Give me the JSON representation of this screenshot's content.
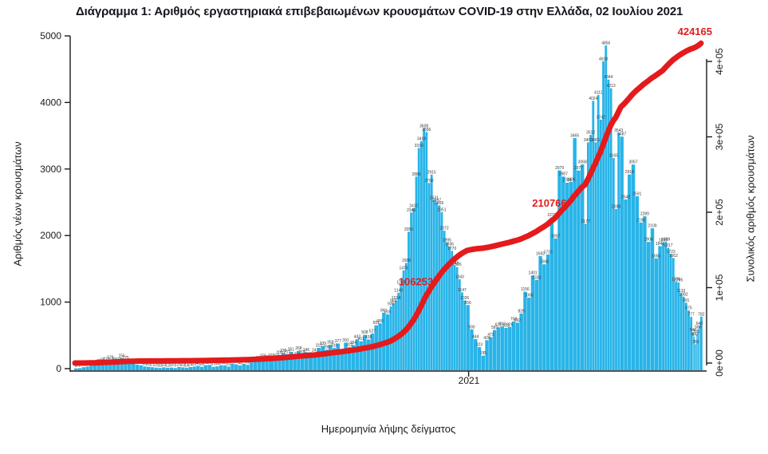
{
  "title": "Διάγραμμα 1: Αριθμός εργαστηριακά επιβεβαιωμένων κρουσμάτων COVID-19 στην Ελλάδα, 02 Ιουλίου 2021",
  "axes": {
    "left": {
      "title": "Αριθμός νέων κρουσμάτων",
      "ticks": [
        {
          "value": 0,
          "label": "0"
        },
        {
          "value": 1000,
          "label": "1000"
        },
        {
          "value": 2000,
          "label": "2000"
        },
        {
          "value": 3000,
          "label": "3000"
        },
        {
          "value": 4000,
          "label": "4000"
        },
        {
          "value": 5000,
          "label": "5000"
        }
      ]
    },
    "right": {
      "title": "Συνολικός αριθμός κρουσμάτων",
      "ticks": [
        {
          "value": 0,
          "label": "0e+00"
        },
        {
          "value": 100000,
          "label": "1e+05"
        },
        {
          "value": 200000,
          "label": "2e+05"
        },
        {
          "value": 300000,
          "label": "3e+05"
        },
        {
          "value": 400000,
          "label": "4e+05"
        }
      ]
    },
    "x": {
      "title": "Ημερομηνία λήψης δείγματος",
      "tick_label": "2021",
      "tick_date": "2021-01-01"
    }
  },
  "colors": {
    "bar": "#28b4e8",
    "line": "#e41a1c",
    "annotation": "#e41a1c",
    "bar_label": "#3a3a3a",
    "axis": "#1a1a1a"
  },
  "annotations": [
    {
      "text": "106253",
      "value": 106253
    },
    {
      "text": "210766",
      "value": 210766
    },
    {
      "text": "424165",
      "value": 424165,
      "final": true
    }
  ],
  "chart_data": {
    "type": "bar+line",
    "title": "Διάγραμμα 1: Αριθμός εργαστηριακά επιβεβαιωμένων κρουσμάτων COVID-19 στην Ελλάδα, 02 Ιουλίου 2021",
    "xlabel": "Ημερομηνία λήψης δείγματος",
    "ylabel_left": "Αριθμός νέων κρουσμάτων",
    "ylabel_right": "Συνολικός αριθμός κρουσμάτων",
    "ylim_left": [
      0,
      5000
    ],
    "ylim_right": [
      0,
      400000
    ],
    "x_tick_labels": [
      "2021"
    ],
    "grid": false,
    "legend": "none",
    "date_range": [
      "2020-02-26",
      "2021-07-02"
    ],
    "bar_series": {
      "name": "daily-new-cases",
      "points": [
        [
          "2020-02-26",
          3
        ],
        [
          "2020-02-29",
          7
        ],
        [
          "2020-03-03",
          21
        ],
        [
          "2020-03-06",
          31
        ],
        [
          "2020-03-09",
          46
        ],
        [
          "2020-03-12",
          57
        ],
        [
          "2020-03-15",
          79
        ],
        [
          "2020-03-18",
          95
        ],
        [
          "2020-03-21",
          110
        ],
        [
          "2020-03-24",
          129
        ],
        [
          "2020-03-27",
          99
        ],
        [
          "2020-03-30",
          102
        ],
        [
          "2020-04-02",
          156
        ],
        [
          "2020-04-05",
          125
        ],
        [
          "2020-04-08",
          86
        ],
        [
          "2020-04-11",
          77
        ],
        [
          "2020-04-14",
          60
        ],
        [
          "2020-04-17",
          52
        ],
        [
          "2020-04-20",
          33
        ],
        [
          "2020-04-23",
          28
        ],
        [
          "2020-04-26",
          21
        ],
        [
          "2020-04-29",
          15
        ],
        [
          "2020-05-02",
          10
        ],
        [
          "2020-05-05",
          19
        ],
        [
          "2020-05-08",
          12
        ],
        [
          "2020-05-11",
          16
        ],
        [
          "2020-05-14",
          9
        ],
        [
          "2020-05-17",
          25
        ],
        [
          "2020-05-20",
          19
        ],
        [
          "2020-05-23",
          14
        ],
        [
          "2020-05-26",
          24
        ],
        [
          "2020-05-29",
          31
        ],
        [
          "2020-06-01",
          43
        ],
        [
          "2020-06-04",
          28
        ],
        [
          "2020-06-07",
          52
        ],
        [
          "2020-06-10",
          56
        ],
        [
          "2020-06-13",
          27
        ],
        [
          "2020-06-16",
          34
        ],
        [
          "2020-06-19",
          50
        ],
        [
          "2020-06-22",
          48
        ],
        [
          "2020-06-25",
          31
        ],
        [
          "2020-06-28",
          78
        ],
        [
          "2020-07-01",
          64
        ],
        [
          "2020-07-04",
          48
        ],
        [
          "2020-07-07",
          73
        ],
        [
          "2020-07-10",
          58
        ],
        [
          "2020-07-13",
          94
        ],
        [
          "2020-07-16",
          110
        ],
        [
          "2020-07-19",
          128
        ],
        [
          "2020-07-22",
          156
        ],
        [
          "2020-07-25",
          135
        ],
        [
          "2020-07-28",
          161
        ],
        [
          "2020-08-01",
          153
        ],
        [
          "2020-08-04",
          203
        ],
        [
          "2020-08-07",
          235
        ],
        [
          "2020-08-10",
          217
        ],
        [
          "2020-08-13",
          251
        ],
        [
          "2020-08-16",
          177
        ],
        [
          "2020-08-19",
          268
        ],
        [
          "2020-08-22",
          209
        ],
        [
          "2020-08-25",
          246
        ],
        [
          "2020-08-28",
          178
        ],
        [
          "2020-09-01",
          241
        ],
        [
          "2020-09-04",
          312
        ],
        [
          "2020-09-07",
          339
        ],
        [
          "2020-09-10",
          286
        ],
        [
          "2020-09-13",
          358
        ],
        [
          "2020-09-16",
          310
        ],
        [
          "2020-09-19",
          377
        ],
        [
          "2020-09-22",
          218
        ],
        [
          "2020-09-25",
          391
        ],
        [
          "2020-09-28",
          322
        ],
        [
          "2020-10-01",
          354
        ],
        [
          "2020-10-04",
          442
        ],
        [
          "2020-10-07",
          411
        ],
        [
          "2020-10-10",
          508
        ],
        [
          "2020-10-13",
          438
        ],
        [
          "2020-10-16",
          527
        ],
        [
          "2020-10-19",
          651
        ],
        [
          "2020-10-22",
          680
        ],
        [
          "2020-10-25",
          841
        ],
        [
          "2020-10-28",
          815
        ],
        [
          "2020-10-31",
          935
        ],
        [
          "2020-11-02",
          982
        ],
        [
          "2020-11-04",
          1024
        ],
        [
          "2020-11-06",
          1140
        ],
        [
          "2020-11-08",
          1259
        ],
        [
          "2020-11-10",
          1476
        ],
        [
          "2020-11-12",
          1588
        ],
        [
          "2020-11-14",
          2056
        ],
        [
          "2020-11-16",
          2346
        ],
        [
          "2020-11-18",
          2412
        ],
        [
          "2020-11-20",
          2886
        ],
        [
          "2020-11-22",
          3316
        ],
        [
          "2020-11-24",
          3418
        ],
        [
          "2020-11-26",
          3608
        ],
        [
          "2020-11-28",
          3556
        ],
        [
          "2020-11-30",
          2790
        ],
        [
          "2020-12-02",
          2915
        ],
        [
          "2020-12-04",
          2531
        ],
        [
          "2020-12-06",
          2497
        ],
        [
          "2020-12-08",
          2455
        ],
        [
          "2020-12-10",
          2351
        ],
        [
          "2020-12-12",
          2072
        ],
        [
          "2020-12-14",
          1895
        ],
        [
          "2020-12-16",
          1836
        ],
        [
          "2020-12-18",
          1770
        ],
        [
          "2020-12-20",
          1548
        ],
        [
          "2020-12-22",
          1526
        ],
        [
          "2020-12-24",
          1343
        ],
        [
          "2020-12-26",
          1147
        ],
        [
          "2020-12-28",
          1026
        ],
        [
          "2020-12-30",
          956
        ],
        [
          "2021-01-02",
          590
        ],
        [
          "2021-01-05",
          444
        ],
        [
          "2021-01-08",
          323
        ],
        [
          "2021-01-11",
          195
        ],
        [
          "2021-01-14",
          428
        ],
        [
          "2021-01-17",
          473
        ],
        [
          "2021-01-20",
          581
        ],
        [
          "2021-01-23",
          622
        ],
        [
          "2021-01-26",
          633
        ],
        [
          "2021-01-29",
          612
        ],
        [
          "2021-02-01",
          626
        ],
        [
          "2021-02-04",
          708
        ],
        [
          "2021-02-07",
          692
        ],
        [
          "2021-02-10",
          829
        ],
        [
          "2021-02-13",
          1156
        ],
        [
          "2021-02-16",
          1066
        ],
        [
          "2021-02-19",
          1401
        ],
        [
          "2021-02-22",
          1333
        ],
        [
          "2021-02-25",
          1692
        ],
        [
          "2021-02-28",
          1568
        ],
        [
          "2021-03-03",
          1715
        ],
        [
          "2021-03-06",
          2272
        ],
        [
          "2021-03-09",
          1957
        ],
        [
          "2021-03-12",
          2979
        ],
        [
          "2021-03-15",
          2887
        ],
        [
          "2021-03-18",
          2794
        ],
        [
          "2021-03-21",
          2806
        ],
        [
          "2021-03-24",
          3465
        ],
        [
          "2021-03-27",
          2977
        ],
        [
          "2021-03-30",
          3068
        ],
        [
          "2021-04-02",
          2177
        ],
        [
          "2021-04-04",
          3400
        ],
        [
          "2021-04-06",
          3512
        ],
        [
          "2021-04-08",
          4024
        ],
        [
          "2021-04-10",
          3401
        ],
        [
          "2021-04-12",
          4111
        ],
        [
          "2021-04-14",
          3742
        ],
        [
          "2021-04-16",
          4618
        ],
        [
          "2021-04-18",
          4856
        ],
        [
          "2021-04-20",
          4344
        ],
        [
          "2021-04-22",
          4213
        ],
        [
          "2021-04-24",
          3165
        ],
        [
          "2021-04-26",
          2398
        ],
        [
          "2021-04-28",
          3543
        ],
        [
          "2021-04-30",
          3487
        ],
        [
          "2021-05-03",
          2543
        ],
        [
          "2021-05-06",
          2918
        ],
        [
          "2021-05-09",
          3067
        ],
        [
          "2021-05-12",
          2591
        ],
        [
          "2021-05-15",
          2196
        ],
        [
          "2021-05-18",
          2289
        ],
        [
          "2021-05-21",
          1904
        ],
        [
          "2021-05-24",
          2109
        ],
        [
          "2021-05-27",
          1656
        ],
        [
          "2021-05-30",
          1841
        ],
        [
          "2021-06-02",
          1894
        ],
        [
          "2021-06-04",
          1909
        ],
        [
          "2021-06-06",
          1817
        ],
        [
          "2021-06-08",
          1723
        ],
        [
          "2021-06-10",
          1662
        ],
        [
          "2021-06-12",
          1305
        ],
        [
          "2021-06-14",
          1295
        ],
        [
          "2021-06-16",
          1133
        ],
        [
          "2021-06-18",
          1082
        ],
        [
          "2021-06-20",
          991
        ],
        [
          "2021-06-22",
          875
        ],
        [
          "2021-06-24",
          777
        ],
        [
          "2021-06-26",
          546
        ],
        [
          "2021-06-27",
          480
        ],
        [
          "2021-06-28",
          366
        ],
        [
          "2021-06-29",
          521
        ],
        [
          "2021-06-30",
          588
        ],
        [
          "2021-07-01",
          640
        ],
        [
          "2021-07-02",
          782
        ]
      ]
    },
    "line_series": {
      "name": "cumulative-cases",
      "final_total": 424165,
      "labeled_points": [
        106253,
        210766,
        424165
      ]
    }
  }
}
